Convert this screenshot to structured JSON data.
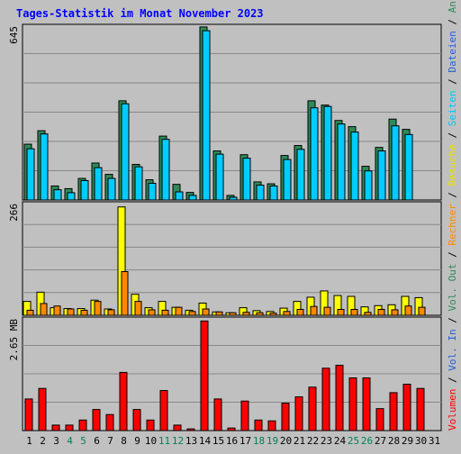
{
  "chart_data": [
    {
      "type": "bar",
      "title": "Tages-Statistik im Monat November 2023",
      "ymax_label": "645",
      "ylim": [
        0,
        645
      ],
      "categories": [
        "1",
        "2",
        "3",
        "4",
        "5",
        "6",
        "7",
        "8",
        "9",
        "10",
        "11",
        "12",
        "13",
        "14",
        "15",
        "16",
        "17",
        "18",
        "19",
        "20",
        "21",
        "22",
        "23",
        "24",
        "25",
        "26",
        "27",
        "28",
        "29",
        "30",
        "31"
      ],
      "weekend_days": [
        "4",
        "5",
        "11",
        "12",
        "18",
        "19",
        "25",
        "26"
      ],
      "series": [
        {
          "name": "Anfragen",
          "color": "#2e8b57",
          "values": [
            207,
            257,
            52,
            42,
            80,
            137,
            95,
            368,
            132,
            75,
            237,
            58,
            28,
            642,
            182,
            17,
            168,
            67,
            60,
            165,
            202,
            368,
            352,
            295,
            272,
            125,
            195,
            300,
            262,
            0,
            0
          ]
        },
        {
          "name": "Dateien",
          "color": "#00ccff",
          "values": [
            190,
            245,
            38,
            27,
            72,
            120,
            80,
            357,
            123,
            62,
            225,
            30,
            17,
            628,
            170,
            10,
            155,
            55,
            52,
            150,
            188,
            342,
            347,
            282,
            252,
            108,
            182,
            275,
            243,
            0,
            0
          ]
        }
      ]
    },
    {
      "type": "bar",
      "ymax_label": "266",
      "ylim": [
        0,
        266
      ],
      "categories": [
        "1",
        "2",
        "3",
        "4",
        "5",
        "6",
        "7",
        "8",
        "9",
        "10",
        "11",
        "12",
        "13",
        "14",
        "15",
        "16",
        "17",
        "18",
        "19",
        "20",
        "21",
        "22",
        "23",
        "24",
        "25",
        "26",
        "27",
        "28",
        "29",
        "30",
        "31"
      ],
      "series": [
        {
          "name": "Seiten",
          "color": "#00ccff",
          "values": [
            0,
            0,
            0,
            0,
            0,
            0,
            0,
            0,
            0,
            0,
            0,
            0,
            0,
            0,
            0,
            0,
            0,
            0,
            0,
            0,
            0,
            0,
            0,
            0,
            0,
            0,
            0,
            0,
            0,
            0,
            0
          ]
        },
        {
          "name": "Besuche",
          "color": "#ffff00",
          "values": [
            33,
            55,
            18,
            16,
            16,
            36,
            15,
            258,
            50,
            18,
            33,
            19,
            12,
            29,
            8,
            6,
            18,
            11,
            9,
            17,
            33,
            43,
            58,
            47,
            45,
            20,
            23,
            25,
            45,
            42,
            0
          ]
        },
        {
          "name": "Rechner",
          "color": "#ff8800",
          "values": [
            12,
            28,
            22,
            15,
            12,
            33,
            13,
            104,
            33,
            13,
            12,
            19,
            9,
            15,
            8,
            6,
            7,
            6,
            5,
            9,
            14,
            21,
            19,
            14,
            14,
            7,
            14,
            13,
            22,
            19,
            0
          ]
        }
      ]
    },
    {
      "type": "bar",
      "ymax_label": "2.65 MB",
      "ylim": [
        0,
        2.65
      ],
      "categories": [
        "1",
        "2",
        "3",
        "4",
        "5",
        "6",
        "7",
        "8",
        "9",
        "10",
        "11",
        "12",
        "13",
        "14",
        "15",
        "16",
        "17",
        "18",
        "19",
        "20",
        "21",
        "22",
        "23",
        "24",
        "25",
        "26",
        "27",
        "28",
        "29",
        "30",
        "31"
      ],
      "series": [
        {
          "name": "Volumen",
          "color": "#ff0000",
          "values": [
            0.75,
            1.0,
            0.13,
            0.13,
            0.25,
            0.5,
            0.38,
            1.38,
            0.5,
            0.25,
            0.95,
            0.13,
            0.04,
            2.6,
            0.75,
            0.06,
            0.7,
            0.25,
            0.23,
            0.65,
            0.8,
            1.03,
            1.48,
            1.55,
            1.25,
            1.25,
            0.52,
            0.9,
            1.1,
            1.0,
            0
          ]
        }
      ]
    }
  ],
  "legend": [
    {
      "label": "Anfragen",
      "color": "#2e8b57"
    },
    {
      "label": "Dateien",
      "color": "#1f5fd6"
    },
    {
      "label": "Seiten",
      "color": "#00c8f0"
    },
    {
      "label": "Besuche",
      "color": "#e8e000"
    },
    {
      "label": "Rechner",
      "color": "#ff8800"
    },
    {
      "label": "Vol. Out",
      "color": "#2e8b57"
    },
    {
      "label": "Vol. In",
      "color": "#1f5fd6"
    },
    {
      "label": "Volumen",
      "color": "#ff0000"
    }
  ],
  "colors": {
    "background": "#c0c0c0",
    "title": "#0000ff",
    "weekday_label": "#000000",
    "weekend_label": "#00805a"
  }
}
